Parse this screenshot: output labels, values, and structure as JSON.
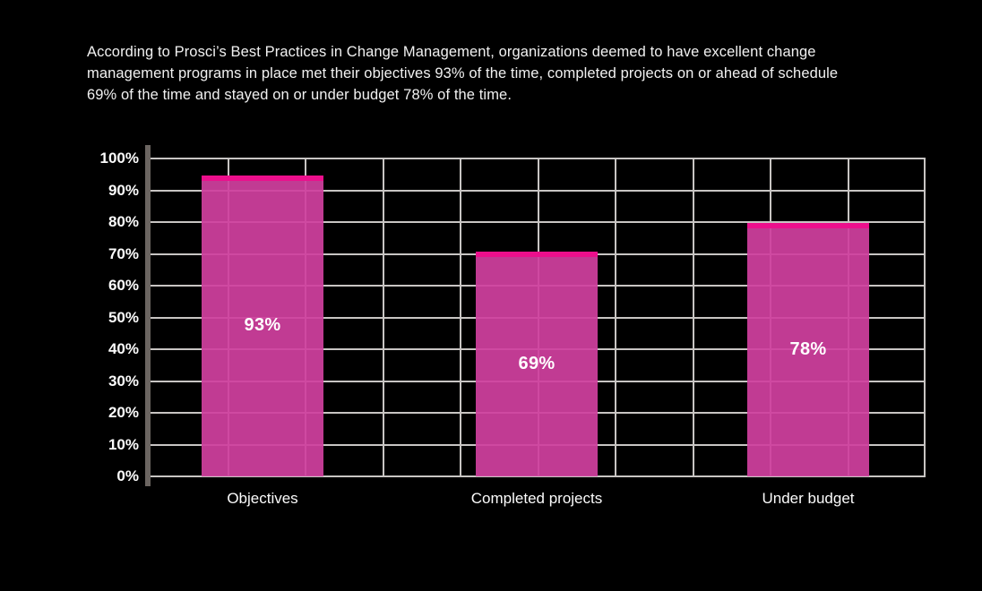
{
  "intro": {
    "lines": [
      "According to Prosci’s Best Practices in Change Management, organizations deemed to have excellent change",
      "management programs in place met their objectives 93% of the time, completed projects on or ahead of schedule",
      "69% of the time and stayed on or under budget 78% of the time."
    ]
  },
  "chart_data": {
    "type": "bar",
    "categories": [
      "Objectives",
      "Completed projects",
      "Under budget"
    ],
    "values": [
      93,
      69,
      78
    ],
    "value_labels": [
      "93%",
      "69%",
      "78%"
    ],
    "y_ticks": [
      "100%",
      "90%",
      "80%",
      "70%",
      "60%",
      "50%",
      "40%",
      "30%",
      "20%",
      "10%",
      "0%"
    ],
    "ylim": [
      0,
      100
    ],
    "grid": "horizontal and vertical gridlines on",
    "legend_position": "none",
    "title": "",
    "xlabel": "",
    "ylabel": "",
    "colors": {
      "background": "#000000",
      "bar_body": "#c33c93",
      "bar_cap": "#ec0f8c",
      "axis_bar": "#6b6561",
      "gridline": "#c8c5c3",
      "label_text": "#ffffff"
    }
  }
}
